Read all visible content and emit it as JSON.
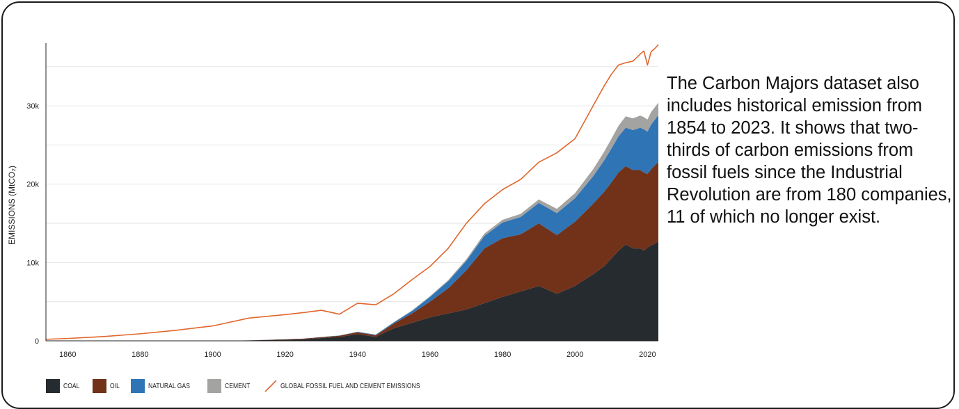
{
  "caption": {
    "text": "The Carbon Majors dataset also includes historical emission from 1854 to 2023. It shows that two-thirds of carbon emissions from fossil fuels since the Industrial Revolution are from 180 companies, 11 of which no longer exist."
  },
  "legend": {
    "coal": "COAL",
    "oil": "OIL",
    "natural_gas": "NATURAL GAS",
    "cement": "CEMENT",
    "global": "GLOBAL FOSSIL FUEL AND CEMENT EMISSIONS"
  },
  "colors": {
    "coal": "#262b2f",
    "oil": "#72321a",
    "natural_gas": "#2f74b5",
    "cement": "#a3a3a1",
    "global": "#e0662c",
    "grid": "#e6e6e6",
    "axis": "#222222"
  },
  "chart_data": {
    "type": "area",
    "ylabel": "EMISSIONS (MtCO₂)",
    "xlim": [
      1854,
      2023
    ],
    "ylim": [
      0,
      38000
    ],
    "x_ticks": [
      1860,
      1880,
      1900,
      1920,
      1940,
      1960,
      1980,
      2000,
      2020
    ],
    "y_ticks": [
      0,
      10000,
      20000,
      30000
    ],
    "y_tick_labels": [
      "0",
      "10k",
      "20k",
      "30k"
    ],
    "grid": true,
    "legend_position": "bottom-left",
    "x": [
      1854,
      1860,
      1870,
      1880,
      1890,
      1900,
      1910,
      1920,
      1925,
      1930,
      1935,
      1940,
      1945,
      1950,
      1955,
      1960,
      1965,
      1970,
      1975,
      1980,
      1985,
      1990,
      1995,
      2000,
      2005,
      2008,
      2010,
      2012,
      2014,
      2016,
      2018,
      2019,
      2020,
      2021,
      2022,
      2023
    ],
    "series": [
      {
        "name": "COAL",
        "values": [
          0,
          0,
          0,
          0,
          0,
          0,
          50,
          150,
          200,
          350,
          500,
          850,
          500,
          1600,
          2300,
          3000,
          3500,
          4000,
          4800,
          5600,
          6300,
          7000,
          6000,
          7000,
          8500,
          9500,
          10500,
          11500,
          12300,
          11800,
          11800,
          11500,
          11900,
          12200,
          12400,
          12700
        ]
      },
      {
        "name": "OIL",
        "values": [
          0,
          0,
          0,
          0,
          0,
          0,
          10,
          50,
          80,
          120,
          150,
          250,
          200,
          600,
          1200,
          2000,
          3200,
          5000,
          7000,
          7500,
          7300,
          8000,
          7500,
          8200,
          9000,
          9500,
          9700,
          10000,
          10000,
          10000,
          10000,
          10000,
          9400,
          9700,
          10000,
          10100
        ]
      },
      {
        "name": "NATURAL GAS",
        "values": [
          0,
          0,
          0,
          0,
          0,
          0,
          0,
          0,
          0,
          20,
          30,
          50,
          80,
          150,
          300,
          600,
          900,
          1200,
          1600,
          2000,
          2200,
          2600,
          2800,
          3000,
          3500,
          4000,
          4300,
          4600,
          4900,
          5100,
          5400,
          5500,
          5400,
          5700,
          5800,
          6000
        ]
      },
      {
        "name": "CEMENT",
        "values": [
          0,
          0,
          0,
          0,
          0,
          0,
          0,
          0,
          0,
          5,
          10,
          15,
          20,
          40,
          70,
          100,
          150,
          200,
          300,
          350,
          400,
          450,
          550,
          650,
          900,
          1100,
          1250,
          1350,
          1450,
          1500,
          1550,
          1550,
          1550,
          1600,
          1600,
          1600
        ]
      },
      {
        "name": "GLOBAL FOSSIL FUEL AND CEMENT EMISSIONS",
        "values": [
          200,
          300,
          550,
          900,
          1350,
          1900,
          2900,
          3350,
          3600,
          3900,
          3400,
          4800,
          4600,
          6000,
          7800,
          9500,
          11800,
          15000,
          17500,
          19300,
          20600,
          22800,
          24000,
          25800,
          30000,
          32500,
          34000,
          35200,
          35500,
          35700,
          36600,
          37000,
          35200,
          36900,
          37300,
          37800
        ]
      }
    ]
  }
}
